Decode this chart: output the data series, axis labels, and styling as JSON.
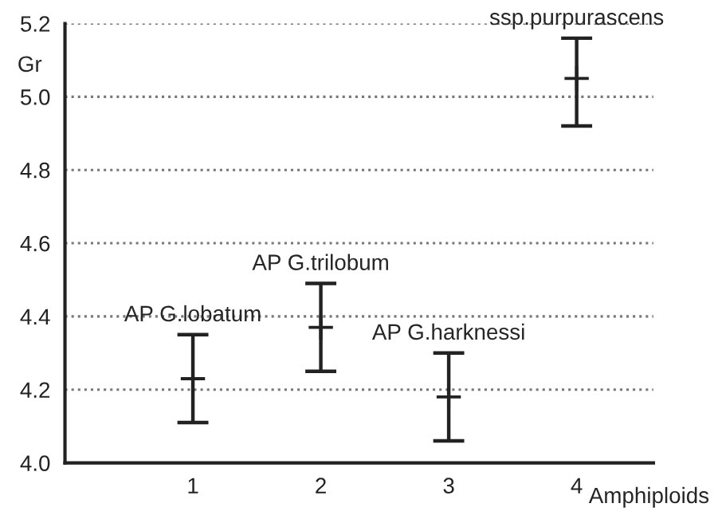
{
  "chart_data": {
    "type": "scatter",
    "xlabel": "Amphiploids",
    "ylabel": "Gr",
    "x": [
      1,
      2,
      3,
      4
    ],
    "values": [
      4.23,
      4.37,
      4.18,
      5.05
    ],
    "errors": [
      [
        4.11,
        4.35
      ],
      [
        4.25,
        4.49
      ],
      [
        4.06,
        4.3
      ],
      [
        4.92,
        5.16
      ]
    ],
    "color": "#222222",
    "marker": "cross",
    "annotations": [
      {
        "text": "AP G.lobatum",
        "x": 1,
        "y": 4.35
      },
      {
        "text": "AP G.trilobum",
        "x": 2,
        "y": 4.49
      },
      {
        "text": "AP G.harknessi",
        "x": 3,
        "y": 4.3
      },
      {
        "text": "ssp.purpurascens",
        "x": 4,
        "y": 5.16
      }
    ],
    "xlim": [
      0,
      4.6
    ],
    "xticks": [
      1,
      2,
      3,
      4
    ],
    "ylim": [
      4.0,
      5.2
    ],
    "yticks": [
      {
        "value": 4.0,
        "label": "4.0"
      },
      {
        "value": 4.2,
        "label": "4.2"
      },
      {
        "value": 4.4,
        "label": "4.4"
      },
      {
        "value": 4.6,
        "label": "4.6"
      },
      {
        "value": 4.8,
        "label": "4.8"
      },
      {
        "value": 5.0,
        "label": "5.0"
      },
      {
        "value": 5.2,
        "label": "5.2"
      }
    ],
    "grid": "y"
  }
}
